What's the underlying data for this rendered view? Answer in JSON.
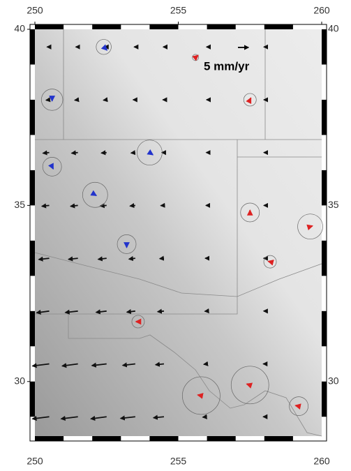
{
  "chart_data": {
    "type": "map",
    "xlim": [
      250,
      260
    ],
    "ylim": [
      28.45,
      40
    ],
    "xticks": [
      250,
      255,
      260
    ],
    "yticks": [
      30,
      35,
      40
    ],
    "scale": {
      "value": 5,
      "label": "5 mm/yr"
    },
    "series": [
      {
        "color": "#111111",
        "lon": [
          250.5,
          251.5,
          252.5,
          253.5,
          254.5,
          256,
          258,
          250.5,
          251.5,
          252.5,
          253.5,
          254.5,
          256,
          258,
          250.5,
          251.5,
          252.5,
          253.5,
          254.5,
          256,
          258,
          250.5,
          251.5,
          252.5,
          253.5,
          254.5,
          256,
          258,
          250.5,
          251.5,
          252.5,
          253.5,
          254.5,
          256,
          258,
          250.5,
          251.5,
          252.5,
          253.5,
          254.5,
          256,
          258,
          250.5,
          251.5,
          252.5,
          253.5,
          254.5,
          256,
          258,
          250.5,
          251.5,
          252.5,
          253.5,
          254.5,
          256,
          258
        ],
        "lat": [
          29,
          29,
          29,
          29,
          29,
          29,
          29,
          30.5,
          30.5,
          30.5,
          30.5,
          30.5,
          30.5,
          30.5,
          32,
          32,
          32,
          32,
          32,
          32,
          32,
          33.5,
          33.5,
          33.5,
          33.5,
          33.5,
          33.5,
          33.5,
          35,
          35,
          35,
          35,
          35,
          35,
          35,
          36.5,
          36.5,
          36.5,
          36.5,
          36.5,
          36.5,
          36.5,
          38,
          38,
          38,
          38,
          38,
          38,
          38,
          39.5,
          39.5,
          39.5,
          39.5,
          39.5,
          39.5,
          39.5
        ],
        "ve": [
          -8,
          -8,
          -7.5,
          -7,
          -5,
          -2,
          -0.5,
          -8,
          -7.5,
          -7,
          -6,
          -4,
          -1.5,
          -0.5,
          -6,
          -6,
          -5,
          -4,
          -3,
          -1,
          -0.3,
          -5,
          -4.5,
          -4,
          -3,
          -2,
          -0.8,
          -0.3,
          -3.5,
          -3.5,
          -3,
          -2.5,
          -1.5,
          -0.5,
          -0.2,
          -3,
          -3,
          -2.5,
          -2,
          -1,
          -0.3,
          -0.2,
          -1.5,
          -1.5,
          -1.5,
          -1,
          -0.5,
          -0.2,
          -0.2,
          -1,
          -1,
          -1,
          -0.5,
          -0.3,
          -0.2,
          -0.2
        ],
        "vn": [
          -1,
          -1,
          -1,
          -0.8,
          -0.5,
          -0.2,
          0,
          -1,
          -1,
          -0.8,
          -0.7,
          -0.4,
          -0.2,
          0,
          -0.8,
          -0.7,
          -0.6,
          -0.5,
          -0.3,
          -0.1,
          0,
          -0.6,
          -0.5,
          -0.5,
          -0.4,
          -0.2,
          0,
          0,
          -0.4,
          -0.4,
          -0.3,
          -0.3,
          -0.1,
          0,
          0,
          -0.3,
          -0.3,
          -0.2,
          -0.2,
          0,
          0,
          0,
          -0.2,
          -0.2,
          -0.2,
          0,
          0,
          0,
          0,
          0,
          0,
          0,
          0,
          0,
          0,
          0
        ]
      },
      {
        "color": "#dd2222",
        "lon": [
          255.6,
          257.5,
          257.5,
          259.6,
          258.2,
          253.6,
          257.5,
          255.8,
          259.2
        ],
        "lat": [
          39.2,
          38,
          34.8,
          34.4,
          33.4,
          31.7,
          29.9,
          29.6,
          29.3
        ],
        "ve": [
          1.2,
          0.4,
          0,
          1,
          -0.8,
          -1,
          -1.5,
          -1.6,
          -1.5
        ],
        "vn": [
          1,
          0.8,
          1,
          0.3,
          0.2,
          0,
          0.5,
          0.3,
          0.3
        ],
        "error": [
          0.5,
          1,
          1.5,
          2,
          1,
          1,
          3,
          3,
          1.5
        ]
      },
      {
        "color": "#2233cc",
        "lon": [
          252.4,
          250.6,
          254,
          250.6,
          252.1,
          253.2
        ],
        "lat": [
          39.5,
          38,
          36.5,
          36.1,
          35.3,
          33.9
        ],
        "ve": [
          1.5,
          0,
          1.5,
          0.5,
          0.5,
          0
        ],
        "vn": [
          -1.5,
          -0.5,
          -1,
          -1,
          -0.3,
          -1.5
        ],
        "error": [
          1.2,
          1.7,
          2,
          1.5,
          2,
          1.5
        ]
      }
    ]
  }
}
